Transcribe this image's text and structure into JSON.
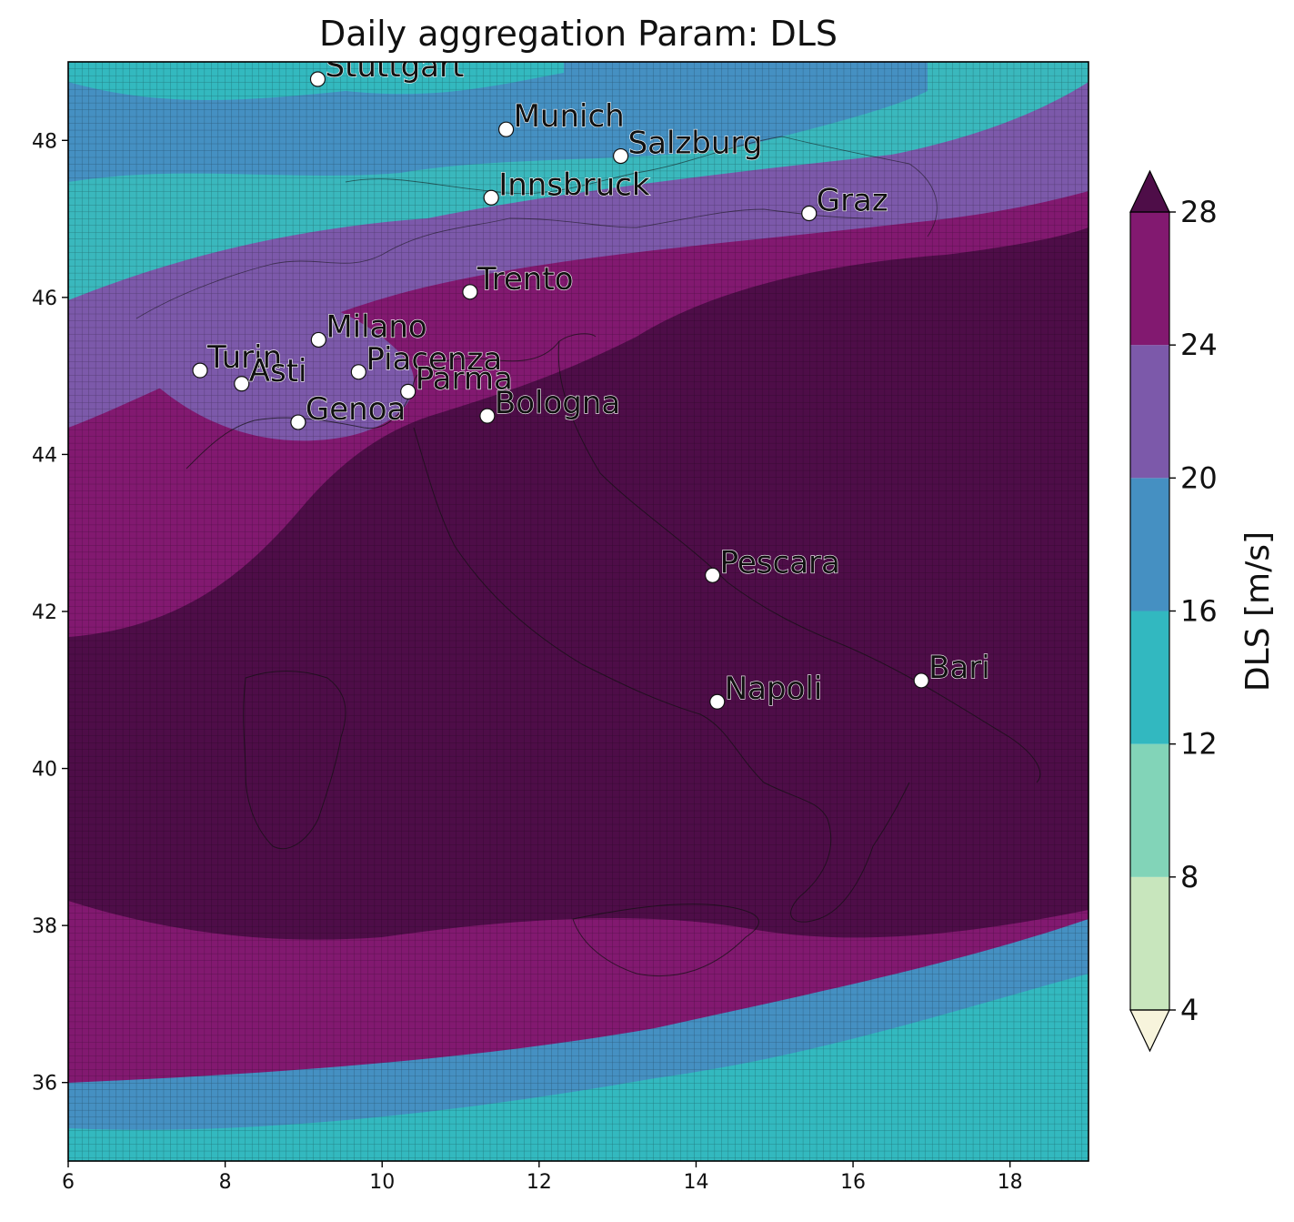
{
  "title": "Daily aggregation Param: DLS",
  "map": {
    "lon_range": [
      6,
      19
    ],
    "lat_range": [
      35,
      49
    ],
    "x_ticks": [
      6,
      8,
      10,
      12,
      14,
      16,
      18
    ],
    "y_ticks": [
      36,
      38,
      40,
      42,
      44,
      46,
      48
    ],
    "cities": [
      {
        "name": "Stuttgart",
        "lon": 9.18,
        "lat": 48.78
      },
      {
        "name": "Munich",
        "lon": 11.58,
        "lat": 48.14
      },
      {
        "name": "Salzburg",
        "lon": 13.04,
        "lat": 47.8
      },
      {
        "name": "Innsbruck",
        "lon": 11.39,
        "lat": 47.27
      },
      {
        "name": "Graz",
        "lon": 15.44,
        "lat": 47.07
      },
      {
        "name": "Trento",
        "lon": 11.12,
        "lat": 46.07
      },
      {
        "name": "Milano",
        "lon": 9.19,
        "lat": 45.46
      },
      {
        "name": "Turin",
        "lon": 7.68,
        "lat": 45.07
      },
      {
        "name": "Asti",
        "lon": 8.21,
        "lat": 44.9
      },
      {
        "name": "Piacenza",
        "lon": 9.7,
        "lat": 45.05
      },
      {
        "name": "Parma",
        "lon": 10.33,
        "lat": 44.8
      },
      {
        "name": "Genoa",
        "lon": 8.93,
        "lat": 44.41
      },
      {
        "name": "Bologna",
        "lon": 11.34,
        "lat": 44.49
      },
      {
        "name": "Pescara",
        "lon": 14.21,
        "lat": 42.46
      },
      {
        "name": "Bari",
        "lon": 16.87,
        "lat": 41.12
      },
      {
        "name": "Napoli",
        "lon": 14.27,
        "lat": 40.85
      }
    ]
  },
  "colorbar": {
    "label": "DLS  [m/s]",
    "ticks": [
      4,
      8,
      12,
      16,
      20,
      24,
      28
    ],
    "extend": "both",
    "under_color": "#f7f4dc",
    "over_color": "#4e0d48",
    "colors": [
      "#c8e6bd",
      "#82d4b8",
      "#32b8c0",
      "#4590c2",
      "#7c59aa",
      "#821970"
    ]
  }
}
